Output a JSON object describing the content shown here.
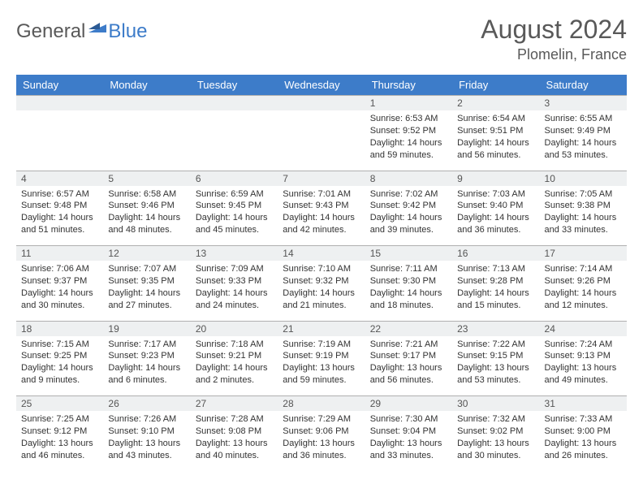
{
  "brand": {
    "part1": "General",
    "part2": "Blue"
  },
  "title": "August 2024",
  "location": "Plomelin, France",
  "colors": {
    "header_bg": "#3d7cc9",
    "header_text": "#ffffff",
    "daynum_bg": "#eef0f1",
    "text": "#333333",
    "title_text": "#595959"
  },
  "weekdays": [
    "Sunday",
    "Monday",
    "Tuesday",
    "Wednesday",
    "Thursday",
    "Friday",
    "Saturday"
  ],
  "weeks": [
    [
      null,
      null,
      null,
      null,
      {
        "d": "1",
        "sr": "6:53 AM",
        "ss": "9:52 PM",
        "dl": "14 hours and 59 minutes."
      },
      {
        "d": "2",
        "sr": "6:54 AM",
        "ss": "9:51 PM",
        "dl": "14 hours and 56 minutes."
      },
      {
        "d": "3",
        "sr": "6:55 AM",
        "ss": "9:49 PM",
        "dl": "14 hours and 53 minutes."
      }
    ],
    [
      {
        "d": "4",
        "sr": "6:57 AM",
        "ss": "9:48 PM",
        "dl": "14 hours and 51 minutes."
      },
      {
        "d": "5",
        "sr": "6:58 AM",
        "ss": "9:46 PM",
        "dl": "14 hours and 48 minutes."
      },
      {
        "d": "6",
        "sr": "6:59 AM",
        "ss": "9:45 PM",
        "dl": "14 hours and 45 minutes."
      },
      {
        "d": "7",
        "sr": "7:01 AM",
        "ss": "9:43 PM",
        "dl": "14 hours and 42 minutes."
      },
      {
        "d": "8",
        "sr": "7:02 AM",
        "ss": "9:42 PM",
        "dl": "14 hours and 39 minutes."
      },
      {
        "d": "9",
        "sr": "7:03 AM",
        "ss": "9:40 PM",
        "dl": "14 hours and 36 minutes."
      },
      {
        "d": "10",
        "sr": "7:05 AM",
        "ss": "9:38 PM",
        "dl": "14 hours and 33 minutes."
      }
    ],
    [
      {
        "d": "11",
        "sr": "7:06 AM",
        "ss": "9:37 PM",
        "dl": "14 hours and 30 minutes."
      },
      {
        "d": "12",
        "sr": "7:07 AM",
        "ss": "9:35 PM",
        "dl": "14 hours and 27 minutes."
      },
      {
        "d": "13",
        "sr": "7:09 AM",
        "ss": "9:33 PM",
        "dl": "14 hours and 24 minutes."
      },
      {
        "d": "14",
        "sr": "7:10 AM",
        "ss": "9:32 PM",
        "dl": "14 hours and 21 minutes."
      },
      {
        "d": "15",
        "sr": "7:11 AM",
        "ss": "9:30 PM",
        "dl": "14 hours and 18 minutes."
      },
      {
        "d": "16",
        "sr": "7:13 AM",
        "ss": "9:28 PM",
        "dl": "14 hours and 15 minutes."
      },
      {
        "d": "17",
        "sr": "7:14 AM",
        "ss": "9:26 PM",
        "dl": "14 hours and 12 minutes."
      }
    ],
    [
      {
        "d": "18",
        "sr": "7:15 AM",
        "ss": "9:25 PM",
        "dl": "14 hours and 9 minutes."
      },
      {
        "d": "19",
        "sr": "7:17 AM",
        "ss": "9:23 PM",
        "dl": "14 hours and 6 minutes."
      },
      {
        "d": "20",
        "sr": "7:18 AM",
        "ss": "9:21 PM",
        "dl": "14 hours and 2 minutes."
      },
      {
        "d": "21",
        "sr": "7:19 AM",
        "ss": "9:19 PM",
        "dl": "13 hours and 59 minutes."
      },
      {
        "d": "22",
        "sr": "7:21 AM",
        "ss": "9:17 PM",
        "dl": "13 hours and 56 minutes."
      },
      {
        "d": "23",
        "sr": "7:22 AM",
        "ss": "9:15 PM",
        "dl": "13 hours and 53 minutes."
      },
      {
        "d": "24",
        "sr": "7:24 AM",
        "ss": "9:13 PM",
        "dl": "13 hours and 49 minutes."
      }
    ],
    [
      {
        "d": "25",
        "sr": "7:25 AM",
        "ss": "9:12 PM",
        "dl": "13 hours and 46 minutes."
      },
      {
        "d": "26",
        "sr": "7:26 AM",
        "ss": "9:10 PM",
        "dl": "13 hours and 43 minutes."
      },
      {
        "d": "27",
        "sr": "7:28 AM",
        "ss": "9:08 PM",
        "dl": "13 hours and 40 minutes."
      },
      {
        "d": "28",
        "sr": "7:29 AM",
        "ss": "9:06 PM",
        "dl": "13 hours and 36 minutes."
      },
      {
        "d": "29",
        "sr": "7:30 AM",
        "ss": "9:04 PM",
        "dl": "13 hours and 33 minutes."
      },
      {
        "d": "30",
        "sr": "7:32 AM",
        "ss": "9:02 PM",
        "dl": "13 hours and 30 minutes."
      },
      {
        "d": "31",
        "sr": "7:33 AM",
        "ss": "9:00 PM",
        "dl": "13 hours and 26 minutes."
      }
    ]
  ],
  "labels": {
    "sunrise": "Sunrise: ",
    "sunset": "Sunset: ",
    "daylight": "Daylight: "
  }
}
